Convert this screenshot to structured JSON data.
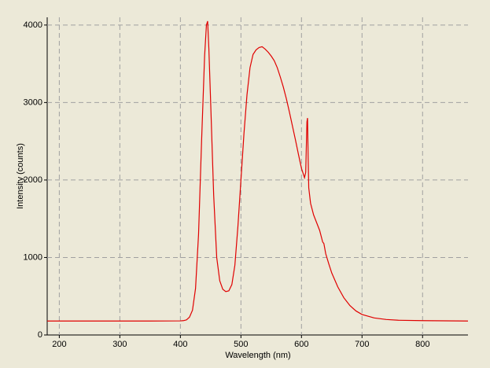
{
  "chart_data": {
    "type": "line",
    "x_label": "Wavelength (nm)",
    "y_label": "Intensity (counts)",
    "xlim": [
      180,
      875
    ],
    "ylim": [
      0,
      4100
    ],
    "xticks": [
      200,
      300,
      400,
      500,
      600,
      700,
      800
    ],
    "yticks": [
      0,
      1000,
      2000,
      3000,
      4000
    ],
    "grid": true,
    "color": "#e00000",
    "x": [
      180,
      250,
      300,
      350,
      400,
      405,
      410,
      415,
      420,
      425,
      430,
      435,
      440,
      443,
      445,
      447,
      450,
      455,
      460,
      465,
      470,
      475,
      480,
      485,
      490,
      495,
      500,
      505,
      510,
      515,
      520,
      525,
      530,
      535,
      540,
      545,
      550,
      555,
      560,
      565,
      570,
      575,
      580,
      585,
      590,
      595,
      600,
      605,
      607,
      609,
      610,
      611,
      612,
      615,
      620,
      625,
      630,
      635,
      637,
      640,
      645,
      650,
      660,
      670,
      680,
      690,
      700,
      720,
      740,
      760,
      800,
      875
    ],
    "values": [
      180,
      180,
      180,
      180,
      182,
      185,
      195,
      230,
      320,
      600,
      1300,
      2500,
      3600,
      4000,
      4050,
      3700,
      3000,
      1800,
      1000,
      700,
      590,
      560,
      570,
      650,
      900,
      1400,
      2000,
      2600,
      3100,
      3450,
      3620,
      3680,
      3710,
      3720,
      3690,
      3650,
      3600,
      3540,
      3450,
      3330,
      3200,
      3050,
      2880,
      2700,
      2520,
      2330,
      2150,
      2030,
      2100,
      2750,
      2800,
      2300,
      1900,
      1700,
      1550,
      1450,
      1350,
      1200,
      1180,
      1050,
      920,
      800,
      620,
      480,
      380,
      310,
      265,
      220,
      200,
      190,
      185,
      180
    ]
  }
}
